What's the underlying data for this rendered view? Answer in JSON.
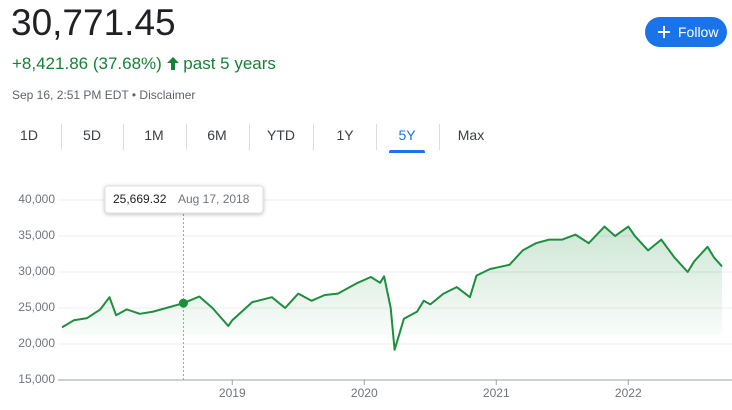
{
  "header": {
    "price": "30,771.45",
    "change": "+8,421.86 (37.68%)",
    "period": "past 5 years",
    "timestamp": "Sep 16, 2:51 PM EDT",
    "separator": "•",
    "disclaimer": "Disclaimer",
    "follow": "Follow"
  },
  "tabs": {
    "items": [
      "1D",
      "5D",
      "1M",
      "6M",
      "YTD",
      "1Y",
      "5Y",
      "Max"
    ],
    "selected": 6
  },
  "chart_data": {
    "type": "line",
    "x": [
      2017.71,
      2017.8,
      2017.9,
      2018.0,
      2018.07,
      2018.12,
      2018.2,
      2018.3,
      2018.4,
      2018.5,
      2018.63,
      2018.75,
      2018.85,
      2018.97,
      2019.0,
      2019.15,
      2019.3,
      2019.4,
      2019.5,
      2019.6,
      2019.7,
      2019.8,
      2019.95,
      2020.05,
      2020.12,
      2020.15,
      2020.2,
      2020.23,
      2020.3,
      2020.4,
      2020.45,
      2020.5,
      2020.6,
      2020.7,
      2020.8,
      2020.85,
      2020.95,
      2021.0,
      2021.1,
      2021.2,
      2021.3,
      2021.4,
      2021.5,
      2021.6,
      2021.7,
      2021.82,
      2021.9,
      2022.0,
      2022.05,
      2022.15,
      2022.25,
      2022.35,
      2022.45,
      2022.5,
      2022.6,
      2022.65,
      2022.71
    ],
    "series": [
      {
        "color": "#1e8e3e",
        "values": [
          22300,
          23300,
          23600,
          24800,
          26500,
          24000,
          24800,
          24200,
          24500,
          25000,
          25669.32,
          26600,
          25000,
          22500,
          23300,
          25800,
          26500,
          25000,
          27000,
          26000,
          26800,
          27000,
          28500,
          29300,
          28500,
          29400,
          25000,
          19200,
          23500,
          24500,
          26000,
          25500,
          27000,
          27900,
          26500,
          29500,
          30400,
          30600,
          31000,
          33000,
          34000,
          34500,
          34500,
          35200,
          34000,
          36300,
          35000,
          36300,
          35000,
          33000,
          34500,
          32000,
          30000,
          31500,
          33500,
          32000,
          30771.45
        ]
      }
    ],
    "xlim": [
      2017.71,
      2022.71
    ],
    "xticks": [
      2019,
      2020,
      2021,
      2022
    ],
    "ylim": [
      15000,
      40000
    ],
    "yticks": [
      {
        "value": 15000,
        "label": "15,000"
      },
      {
        "value": 20000,
        "label": "20,000"
      },
      {
        "value": 25000,
        "label": "25,000"
      },
      {
        "value": 30000,
        "label": "30,000"
      },
      {
        "value": 35000,
        "label": "35,000"
      },
      {
        "value": 40000,
        "label": "40,000"
      }
    ],
    "grid": true,
    "highlight": {
      "x": 2018.63,
      "value": 25669.32,
      "label": "25,669.32",
      "date": "Aug 17, 2018"
    }
  }
}
